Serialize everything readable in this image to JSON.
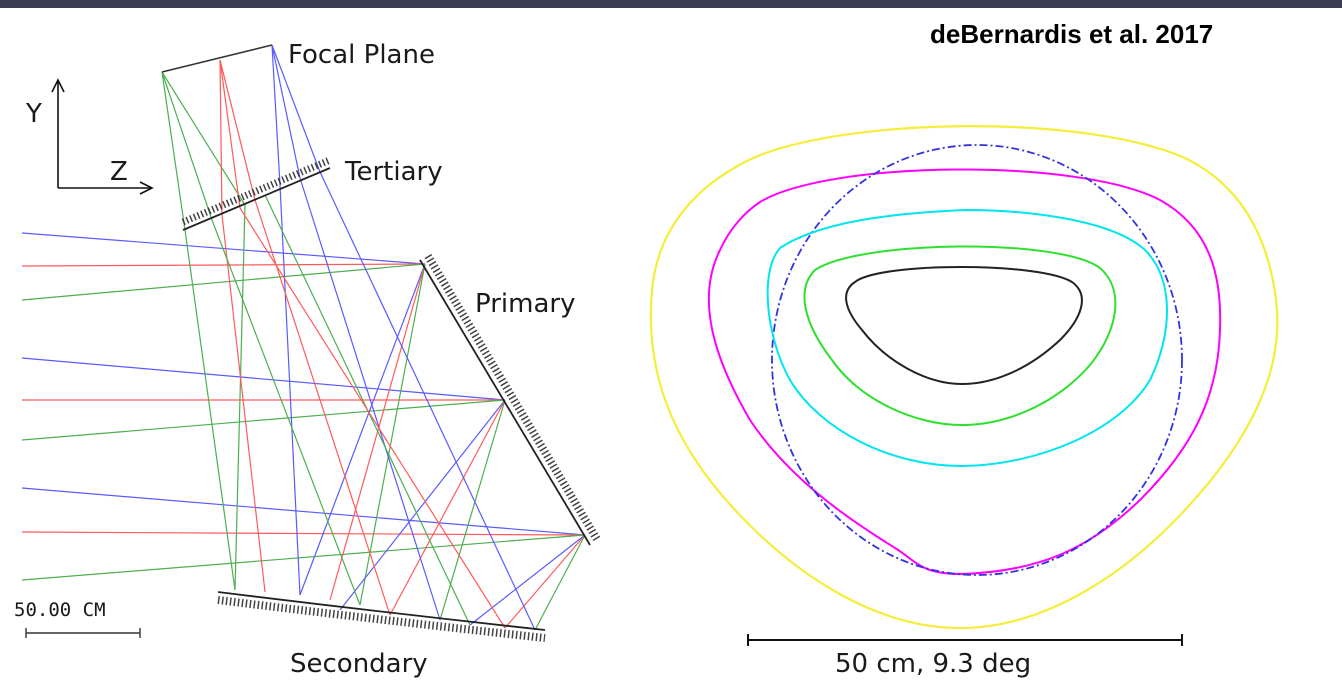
{
  "citation": "deBernardis et al. 2017",
  "optics": {
    "axis_y": "Y",
    "axis_z": "Z",
    "focal_plane": "Focal Plane",
    "tertiary": "Tertiary",
    "primary": "Primary",
    "secondary": "Secondary",
    "scale": "50.00 CM"
  },
  "beam": {
    "scale": "50 cm,  9.3 deg"
  },
  "colors": {
    "ray_blue": "#5a5aff",
    "ray_red": "#ff5a5a",
    "ray_green": "#4caf50",
    "contour_yellow": "#f4ee3a",
    "contour_magenta": "#ff00ff",
    "contour_cyan": "#00e5f0",
    "contour_green": "#2ee02e",
    "contour_black": "#222222",
    "circle_blue": "#3333dd"
  }
}
